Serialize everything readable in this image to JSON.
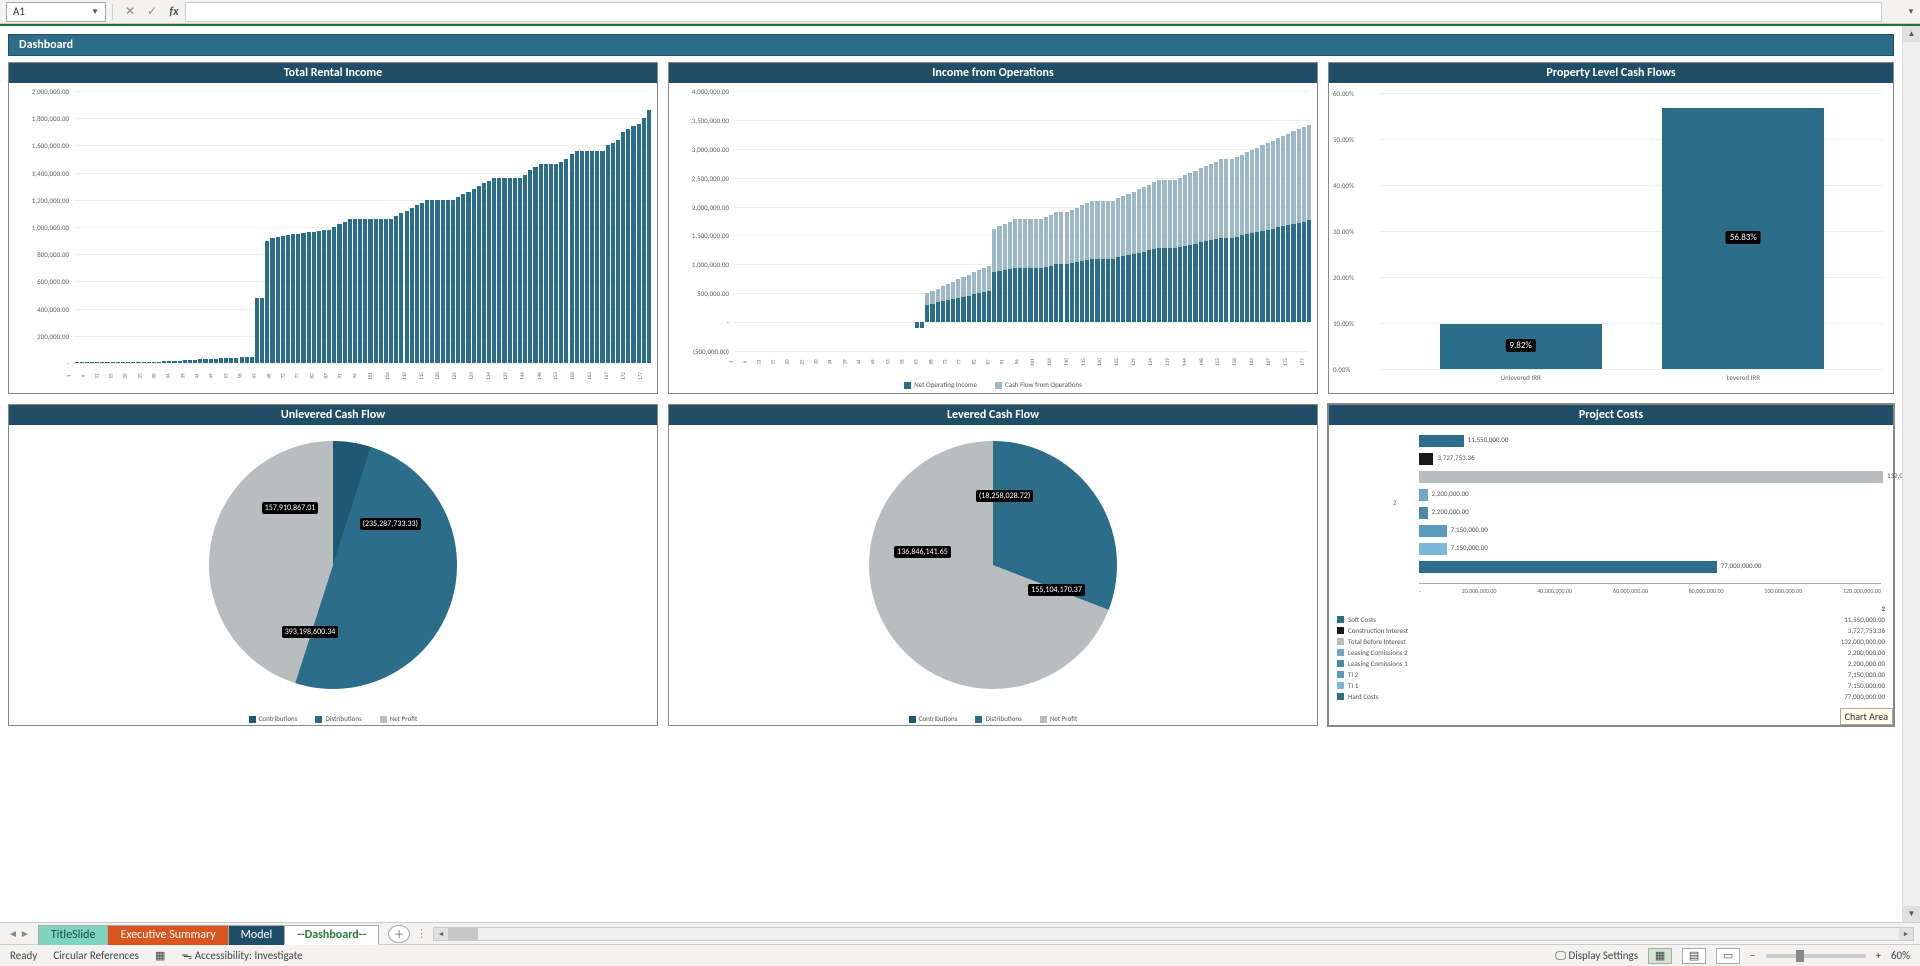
{
  "formula_bar": {
    "cell_ref": "A1",
    "fx_label": "fx",
    "cancel_glyph": "✕",
    "enter_glyph": "✓"
  },
  "dashboard": {
    "title": "Dashboard"
  },
  "rental_chart": {
    "title": "Total Rental Income",
    "type": "bar",
    "bar_color": "#2c6e8a",
    "yticks": [
      "-",
      "200,000.00",
      "400,000.00",
      "600,000.00",
      "800,000.00",
      "1,000,000.00",
      "1,200,000.00",
      "1,400,000.00",
      "1,600,000.00",
      "1,800,000.00",
      "2,000,000.00"
    ],
    "ymax": 2000000,
    "values": [
      5000,
      5000,
      5000,
      5000,
      5000,
      5000,
      5000,
      5000,
      5000,
      5000,
      5000,
      5000,
      6000,
      7000,
      8000,
      9000,
      10000,
      12000,
      14000,
      16000,
      18000,
      20000,
      22000,
      24000,
      26000,
      28000,
      30000,
      32000,
      34000,
      36000,
      38000,
      40000,
      42000,
      44000,
      46000,
      480000,
      480000,
      900000,
      920000,
      930000,
      935000,
      940000,
      945000,
      950000,
      955000,
      960000,
      965000,
      970000,
      975000,
      980000,
      1000000,
      1020000,
      1040000,
      1060000,
      1060000,
      1060000,
      1060000,
      1060000,
      1060000,
      1060000,
      1060000,
      1060000,
      1080000,
      1100000,
      1120000,
      1140000,
      1160000,
      1180000,
      1200000,
      1200000,
      1200000,
      1200000,
      1200000,
      1200000,
      1220000,
      1240000,
      1260000,
      1280000,
      1300000,
      1320000,
      1340000,
      1360000,
      1360000,
      1360000,
      1360000,
      1360000,
      1360000,
      1380000,
      1420000,
      1440000,
      1460000,
      1460000,
      1460000,
      1460000,
      1480000,
      1500000,
      1540000,
      1560000,
      1560000,
      1560000,
      1560000,
      1560000,
      1560000,
      1600000,
      1620000,
      1640000,
      1700000,
      1720000,
      1740000,
      1760000,
      1800000,
      1860000
    ],
    "x_start": 1,
    "x_step": 4,
    "x_end": 177
  },
  "ops_chart": {
    "title": "Income from Operations",
    "type": "stacked_bar",
    "color_noi": "#2c6e8a",
    "color_cfo": "#9db9c8",
    "yticks": [
      "(500,000.00)",
      "-",
      "500,000.00",
      "1,000,000.00",
      "1,500,000.00",
      "2,000,000.00",
      "2,500,000.00",
      "3,000,000.00",
      "3,500,000.00",
      "4,000,000.00"
    ],
    "ymin": -500000,
    "ymax": 4000000,
    "legend": [
      "Net Operating Income",
      "Cash Flow from Operations"
    ],
    "noi": [
      0,
      0,
      0,
      0,
      0,
      0,
      0,
      0,
      0,
      0,
      0,
      0,
      0,
      0,
      0,
      0,
      0,
      0,
      0,
      0,
      0,
      0,
      0,
      0,
      0,
      0,
      0,
      0,
      0,
      0,
      0,
      0,
      0,
      0,
      0,
      -100000,
      -100000,
      300000,
      320000,
      340000,
      360000,
      380000,
      400000,
      420000,
      440000,
      460000,
      480000,
      500000,
      520000,
      540000,
      860000,
      880000,
      900000,
      920000,
      940000,
      940000,
      940000,
      940000,
      940000,
      940000,
      960000,
      980000,
      1000000,
      1000000,
      1000000,
      1020000,
      1040000,
      1060000,
      1080000,
      1100000,
      1100000,
      1100000,
      1100000,
      1100000,
      1120000,
      1140000,
      1160000,
      1180000,
      1200000,
      1220000,
      1240000,
      1260000,
      1280000,
      1280000,
      1280000,
      1280000,
      1300000,
      1320000,
      1340000,
      1360000,
      1380000,
      1400000,
      1420000,
      1440000,
      1460000,
      1460000,
      1460000,
      1480000,
      1500000,
      1520000,
      1540000,
      1560000,
      1580000,
      1600000,
      1620000,
      1640000,
      1660000,
      1680000,
      1700000,
      1720000,
      1740000,
      1760000
    ],
    "cfo": [
      0,
      0,
      0,
      0,
      0,
      0,
      0,
      0,
      0,
      0,
      0,
      0,
      0,
      0,
      0,
      0,
      0,
      0,
      0,
      0,
      0,
      0,
      0,
      0,
      0,
      0,
      0,
      0,
      0,
      0,
      0,
      0,
      0,
      0,
      0,
      0,
      0,
      200000,
      220000,
      240000,
      260000,
      280000,
      300000,
      320000,
      340000,
      360000,
      380000,
      400000,
      420000,
      440000,
      760000,
      780000,
      800000,
      820000,
      840000,
      840000,
      840000,
      840000,
      840000,
      840000,
      860000,
      880000,
      900000,
      900000,
      900000,
      920000,
      940000,
      960000,
      980000,
      1000000,
      1000000,
      1000000,
      1000000,
      1000000,
      1020000,
      1040000,
      1060000,
      1080000,
      1100000,
      1120000,
      1140000,
      1160000,
      1180000,
      1180000,
      1180000,
      1180000,
      1200000,
      1220000,
      1240000,
      1260000,
      1280000,
      1300000,
      1320000,
      1340000,
      1360000,
      1360000,
      1360000,
      1380000,
      1400000,
      1420000,
      1440000,
      1460000,
      1480000,
      1500000,
      1520000,
      1540000,
      1560000,
      1580000,
      1600000,
      1620000,
      1640000,
      1660000
    ],
    "x_start": 1,
    "x_step": 4,
    "x_end": 177
  },
  "irr_chart": {
    "title": "Property Level Cash Flows",
    "type": "bar",
    "bar_color": "#2c6e8a",
    "yticks": [
      "0.00%",
      "10.00%",
      "20.00%",
      "30.00%",
      "40.00%",
      "50.00%",
      "60.00%"
    ],
    "ymax": 60,
    "bars": [
      {
        "label": "Unlevered IRR",
        "value": 9.82,
        "display": "9.82%"
      },
      {
        "label": "Levered IRR",
        "value": 56.83,
        "display": "56.83%"
      }
    ]
  },
  "unlevered_pie": {
    "title": "Unlevered Cash Flow",
    "type": "pie",
    "slices": [
      {
        "label": "(235,287,733.33)",
        "value": 235287733.33,
        "color": "#1f5872"
      },
      {
        "label": "393,198,600.34",
        "value": 393198600.34,
        "color": "#2c6e8a"
      },
      {
        "label": "157,910,867.01",
        "value": 157910867.01,
        "color": "#b8bdbf"
      }
    ],
    "legend": [
      "Contributions",
      "Distributions",
      "Net Profit"
    ]
  },
  "levered_pie": {
    "title": "Levered Cash Flow",
    "type": "pie",
    "slices": [
      {
        "label": "(18,258,028.72)",
        "value": 18258028.72,
        "color": "#1f5872"
      },
      {
        "label": "155,104,170.37",
        "value": 155104170.37,
        "color": "#2c6e8a"
      },
      {
        "label": "136,846,141.65",
        "value": 136846141.65,
        "color": "#b8bdbf"
      }
    ],
    "legend": [
      "Contributions",
      "Distributions",
      "Net Profit"
    ]
  },
  "costs_chart": {
    "title": "Project Costs",
    "type": "hbar",
    "xmax": 120000000,
    "xticks": [
      "-",
      "20,000,000.00",
      "40,000,000.00",
      "60,000,000.00",
      "80,000,000.00",
      "100,000,000.00",
      "120,000,000.00"
    ],
    "ylabel": "2",
    "rows": [
      {
        "name": "Soft Costs",
        "value": 11550000,
        "display": "11,550,000.00",
        "color": "#2c6e8a"
      },
      {
        "name": "Construction Interest",
        "value": 3727753.36,
        "display": "3,727,753.36",
        "color": "#1a1a1a"
      },
      {
        "name": "Total Before Interest",
        "value": 132000000,
        "display": "132,000,000.00",
        "color": "#b8bdbf",
        "full": true
      },
      {
        "name": "Leasing Comissions 2",
        "value": 2200000,
        "display": "2,200,000.00",
        "color": "#6fa8c2"
      },
      {
        "name": "Leasing Comissions 1",
        "value": 2200000,
        "display": "2,200,000.00",
        "color": "#4a8aa8"
      },
      {
        "name": "TI 2",
        "value": 7150000,
        "display": "7,150,000.00",
        "color": "#5a9abd"
      },
      {
        "name": "TI 1",
        "value": 7150000,
        "display": "7,150,000.00",
        "color": "#7bb8d4"
      },
      {
        "name": "Hard Costs",
        "value": 77000000,
        "display": "77,000,000.00",
        "color": "#2c6e8a"
      }
    ],
    "legend_header": "2",
    "chart_area_label": "Chart Area"
  },
  "tabs": {
    "items": [
      {
        "label": "TitleSlide",
        "style": "teal"
      },
      {
        "label": "Executive Summary",
        "style": "orange"
      },
      {
        "label": "Model",
        "style": "dark"
      },
      {
        "label": "--Dashboard--",
        "style": "active"
      }
    ]
  },
  "status": {
    "ready": "Ready",
    "circ": "Circular References",
    "access_label": "Accessibility: Investigate",
    "display_settings": "Display Settings",
    "zoom": "60%"
  }
}
